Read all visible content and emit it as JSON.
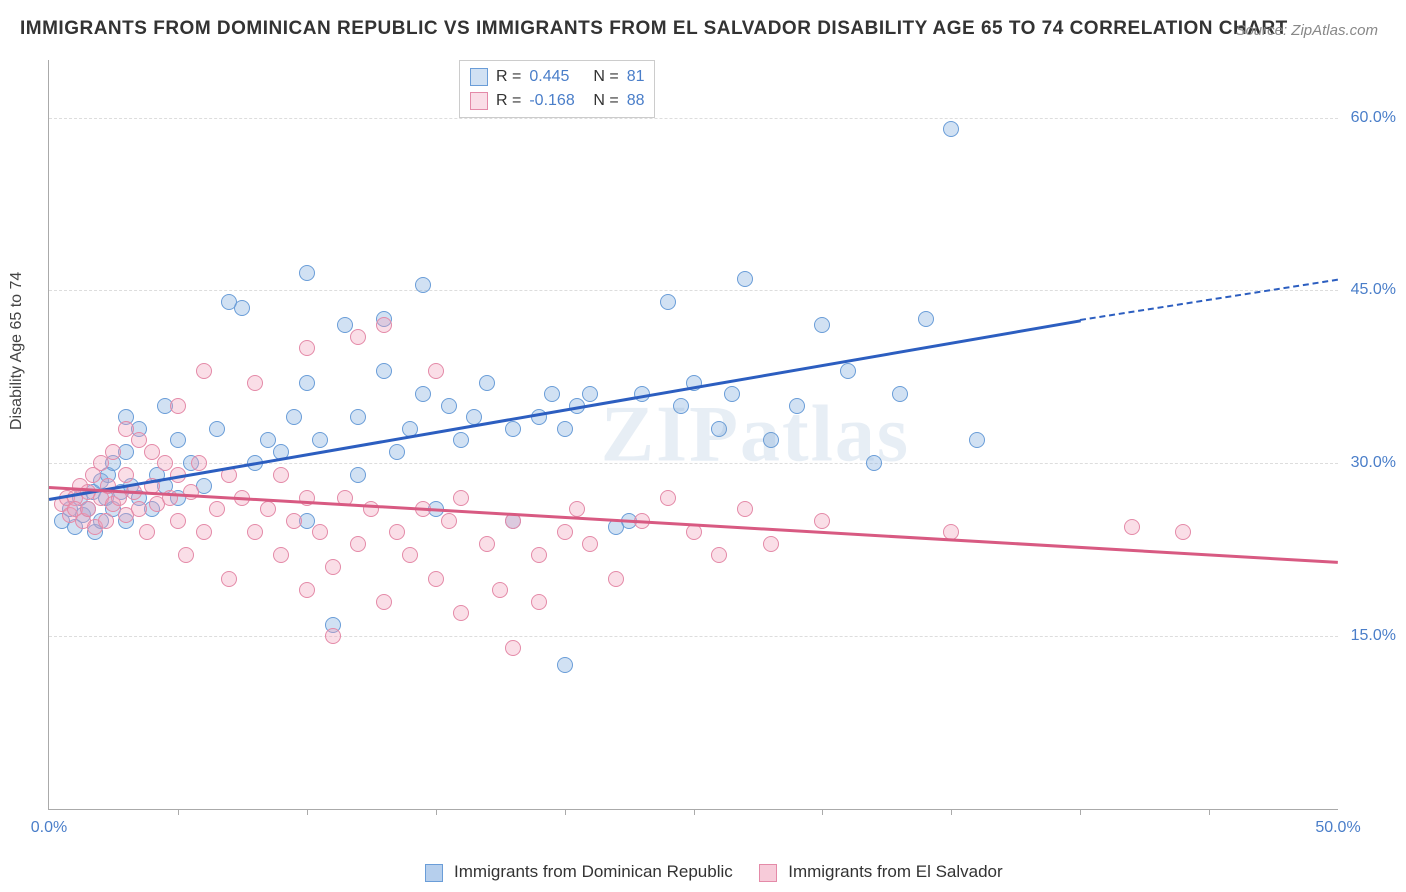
{
  "title": "IMMIGRANTS FROM DOMINICAN REPUBLIC VS IMMIGRANTS FROM EL SALVADOR DISABILITY AGE 65 TO 74 CORRELATION CHART",
  "source": "Source: ZipAtlas.com",
  "ylabel": "Disability Age 65 to 74",
  "watermark": "ZIPatlas",
  "chart": {
    "type": "scatter",
    "xlim": [
      0,
      50
    ],
    "ylim": [
      0,
      65
    ],
    "yticks": [
      15,
      30,
      45,
      60
    ],
    "ytick_labels": [
      "15.0%",
      "30.0%",
      "45.0%",
      "60.0%"
    ],
    "ytick_color": "#4a7ec9",
    "xticks_minor": [
      5,
      10,
      15,
      20,
      25,
      30,
      35,
      40,
      45
    ],
    "xtick_labels": [
      {
        "x": 0,
        "label": "0.0%"
      },
      {
        "x": 50,
        "label": "50.0%"
      }
    ],
    "xtick_color": "#4a7ec9",
    "grid_color": "#dddddd",
    "background_color": "#ffffff",
    "point_radius": 8,
    "point_stroke_width": 1.5,
    "series": [
      {
        "name": "Immigrants from Dominican Republic",
        "fill": "rgba(122,168,222,0.35)",
        "stroke": "#6a9dd8",
        "R": "0.445",
        "N": "81",
        "trend": {
          "x1": 0,
          "y1": 27,
          "x2": 40,
          "y2": 42.5,
          "dashed_to_x": 50,
          "dashed_to_y": 46,
          "color": "#2c5ec0"
        },
        "points": [
          [
            0.5,
            25
          ],
          [
            0.8,
            26
          ],
          [
            1,
            24.5
          ],
          [
            1.2,
            27
          ],
          [
            1.3,
            25.5
          ],
          [
            1.5,
            26
          ],
          [
            1.7,
            27.5
          ],
          [
            1.8,
            24
          ],
          [
            2,
            28.5
          ],
          [
            2,
            25
          ],
          [
            2.2,
            27
          ],
          [
            2.3,
            29
          ],
          [
            2.5,
            26
          ],
          [
            2.5,
            30
          ],
          [
            2.8,
            27.5
          ],
          [
            3,
            25
          ],
          [
            3,
            31
          ],
          [
            3,
            34
          ],
          [
            3.2,
            28
          ],
          [
            3.5,
            27
          ],
          [
            3.5,
            33
          ],
          [
            4,
            26
          ],
          [
            4.2,
            29
          ],
          [
            4.5,
            28
          ],
          [
            4.5,
            35
          ],
          [
            5,
            27
          ],
          [
            5,
            32
          ],
          [
            5.5,
            30
          ],
          [
            6,
            28
          ],
          [
            6.5,
            33
          ],
          [
            7,
            44
          ],
          [
            7.5,
            43.5
          ],
          [
            8,
            30
          ],
          [
            8.5,
            32
          ],
          [
            9,
            31
          ],
          [
            9.5,
            34
          ],
          [
            10,
            25
          ],
          [
            10,
            37
          ],
          [
            10,
            46.5
          ],
          [
            10.5,
            32
          ],
          [
            11,
            16
          ],
          [
            11.5,
            42
          ],
          [
            12,
            29
          ],
          [
            12,
            34
          ],
          [
            13,
            38
          ],
          [
            13,
            42.5
          ],
          [
            13.5,
            31
          ],
          [
            14,
            33
          ],
          [
            14.5,
            36
          ],
          [
            14.5,
            45.5
          ],
          [
            15,
            26
          ],
          [
            15.5,
            35
          ],
          [
            16,
            32
          ],
          [
            16.5,
            34
          ],
          [
            17,
            37
          ],
          [
            18,
            33
          ],
          [
            18,
            25
          ],
          [
            19,
            34
          ],
          [
            19.5,
            36
          ],
          [
            20,
            33
          ],
          [
            20,
            12.5
          ],
          [
            20.5,
            35
          ],
          [
            21,
            36
          ],
          [
            22,
            24.5
          ],
          [
            22.5,
            25
          ],
          [
            23,
            36
          ],
          [
            24,
            44
          ],
          [
            24.5,
            35
          ],
          [
            25,
            37
          ],
          [
            26,
            33
          ],
          [
            26.5,
            36
          ],
          [
            27,
            46
          ],
          [
            28,
            32
          ],
          [
            29,
            35
          ],
          [
            30,
            42
          ],
          [
            31,
            38
          ],
          [
            32,
            30
          ],
          [
            33,
            36
          ],
          [
            34,
            42.5
          ],
          [
            35,
            59
          ],
          [
            36,
            32
          ]
        ]
      },
      {
        "name": "Immigrants from El Salvador",
        "fill": "rgba(240,160,185,0.35)",
        "stroke": "#e48aa8",
        "R": "-0.168",
        "N": "88",
        "trend": {
          "x1": 0,
          "y1": 28,
          "x2": 50,
          "y2": 21.5,
          "color": "#d85a82"
        },
        "points": [
          [
            0.5,
            26.5
          ],
          [
            0.7,
            27
          ],
          [
            0.8,
            25.5
          ],
          [
            1,
            27
          ],
          [
            1,
            26
          ],
          [
            1.2,
            28
          ],
          [
            1.3,
            25
          ],
          [
            1.5,
            27.5
          ],
          [
            1.5,
            26
          ],
          [
            1.7,
            29
          ],
          [
            1.8,
            24.5
          ],
          [
            2,
            27
          ],
          [
            2,
            30
          ],
          [
            2.2,
            25
          ],
          [
            2.3,
            28
          ],
          [
            2.5,
            26.5
          ],
          [
            2.5,
            31
          ],
          [
            2.7,
            27
          ],
          [
            3,
            25.5
          ],
          [
            3,
            29
          ],
          [
            3,
            33
          ],
          [
            3.3,
            27.5
          ],
          [
            3.5,
            26
          ],
          [
            3.5,
            32
          ],
          [
            3.8,
            24
          ],
          [
            4,
            28
          ],
          [
            4,
            31
          ],
          [
            4.2,
            26.5
          ],
          [
            4.5,
            30
          ],
          [
            4.7,
            27
          ],
          [
            5,
            25
          ],
          [
            5,
            29
          ],
          [
            5,
            35
          ],
          [
            5.3,
            22
          ],
          [
            5.5,
            27.5
          ],
          [
            5.8,
            30
          ],
          [
            6,
            24
          ],
          [
            6,
            38
          ],
          [
            6.5,
            26
          ],
          [
            7,
            29
          ],
          [
            7,
            20
          ],
          [
            7.5,
            27
          ],
          [
            8,
            24
          ],
          [
            8,
            37
          ],
          [
            8.5,
            26
          ],
          [
            9,
            22
          ],
          [
            9,
            29
          ],
          [
            9.5,
            25
          ],
          [
            10,
            19
          ],
          [
            10,
            27
          ],
          [
            10,
            40
          ],
          [
            10.5,
            24
          ],
          [
            11,
            21
          ],
          [
            11,
            15
          ],
          [
            11.5,
            27
          ],
          [
            12,
            23
          ],
          [
            12,
            41
          ],
          [
            12.5,
            26
          ],
          [
            13,
            18
          ],
          [
            13,
            42
          ],
          [
            13.5,
            24
          ],
          [
            14,
            22
          ],
          [
            14.5,
            26
          ],
          [
            15,
            20
          ],
          [
            15,
            38
          ],
          [
            15.5,
            25
          ],
          [
            16,
            17
          ],
          [
            16,
            27
          ],
          [
            17,
            23
          ],
          [
            17.5,
            19
          ],
          [
            18,
            14
          ],
          [
            18,
            25
          ],
          [
            19,
            22
          ],
          [
            19,
            18
          ],
          [
            20,
            24
          ],
          [
            20.5,
            26
          ],
          [
            21,
            23
          ],
          [
            22,
            20
          ],
          [
            23,
            25
          ],
          [
            24,
            27
          ],
          [
            25,
            24
          ],
          [
            26,
            22
          ],
          [
            27,
            26
          ],
          [
            28,
            23
          ],
          [
            30,
            25
          ],
          [
            35,
            24
          ],
          [
            42,
            24.5
          ],
          [
            44,
            24
          ]
        ]
      }
    ]
  },
  "legend_stats": {
    "label_R": "R =",
    "label_N": "N ="
  },
  "bottom_legend": [
    {
      "swatch_fill": "rgba(122,168,222,0.55)",
      "swatch_stroke": "#6a9dd8",
      "label": "Immigrants from Dominican Republic"
    },
    {
      "swatch_fill": "rgba(240,160,185,0.55)",
      "swatch_stroke": "#e48aa8",
      "label": "Immigrants from El Salvador"
    }
  ]
}
